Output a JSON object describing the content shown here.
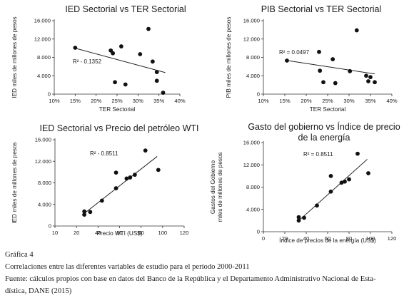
{
  "chart_data": [
    {
      "type": "scatter",
      "title": "IED Sectorial vs TER Sectorial",
      "xlabel": "TER Sectorial",
      "ylabel": "IED miles de millones de pesos",
      "xlim": [
        0.1,
        0.4
      ],
      "ylim": [
        0,
        16000
      ],
      "xticks": [
        "10%",
        "15%",
        "20%",
        "25%",
        "30%",
        "35%",
        "40%"
      ],
      "yticks": [
        "0",
        "4.000",
        "8.000",
        "12.000",
        "16.000"
      ],
      "annotation": "R² - 0.1352",
      "trendline": [
        [
          0.15,
          10000
        ],
        [
          0.365,
          4700
        ]
      ],
      "points": [
        [
          0.15,
          10100
        ],
        [
          0.235,
          9500
        ],
        [
          0.24,
          8900
        ],
        [
          0.245,
          2600
        ],
        [
          0.26,
          10400
        ],
        [
          0.27,
          2100
        ],
        [
          0.305,
          8700
        ],
        [
          0.325,
          14200
        ],
        [
          0.335,
          7100
        ],
        [
          0.345,
          4800
        ],
        [
          0.345,
          2900
        ],
        [
          0.36,
          300
        ]
      ]
    },
    {
      "type": "scatter",
      "title": "PIB Sectorial vs TER Sectorial",
      "xlabel": "TER Sectorial",
      "ylabel": "PIB miles de millones de pesos",
      "xlim": [
        0.1,
        0.4
      ],
      "ylim": [
        0,
        16000
      ],
      "xticks": [
        "10%",
        "15%",
        "20%",
        "25%",
        "30%",
        "35%",
        "40%"
      ],
      "yticks": [
        "0",
        "4.000",
        "8.000",
        "12.000",
        "16.000"
      ],
      "annotation": "R² = 0.0497",
      "trendline": [
        [
          0.15,
          7400
        ],
        [
          0.36,
          4400
        ]
      ],
      "points": [
        [
          0.155,
          7300
        ],
        [
          0.23,
          9200
        ],
        [
          0.232,
          5100
        ],
        [
          0.24,
          2600
        ],
        [
          0.262,
          7600
        ],
        [
          0.268,
          2400
        ],
        [
          0.302,
          5000
        ],
        [
          0.318,
          13900
        ],
        [
          0.34,
          4000
        ],
        [
          0.345,
          2800
        ],
        [
          0.35,
          3700
        ],
        [
          0.36,
          2600
        ]
      ]
    },
    {
      "type": "scatter",
      "title": "IED Sectorial vs Precio del petróleo WTI",
      "xlabel": "Precio WTI (US$)",
      "ylabel": "IED miles de millones de pesos",
      "xlim": [
        10,
        120
      ],
      "ylim": [
        0,
        16000
      ],
      "xticks": [
        "10",
        "20",
        "40",
        "60",
        "80",
        "100",
        "120"
      ],
      "yticks": [
        "0",
        "4.000",
        "8.000",
        "12.000",
        "16.000"
      ],
      "annotation": "R² - 0.8511",
      "trendline": [
        [
          33,
          2000
        ],
        [
          97,
          12900
        ]
      ],
      "points": [
        [
          35,
          2700
        ],
        [
          35,
          2100
        ],
        [
          40,
          2600
        ],
        [
          50,
          4700
        ],
        [
          62,
          7000
        ],
        [
          62,
          9900
        ],
        [
          71,
          8800
        ],
        [
          74,
          9000
        ],
        [
          78,
          9500
        ],
        [
          87,
          14000
        ],
        [
          98,
          10400
        ]
      ]
    },
    {
      "type": "scatter",
      "title": "Gasto del gobierno vs Índice de precio de la energía",
      "xlabel": "Índice de precios de la energía (US$)",
      "ylabel": "Gastos del Gobierno miles de millones de pesos",
      "xlim": [
        0,
        120
      ],
      "ylim": [
        0,
        16000
      ],
      "xticks": [
        "0",
        "20",
        "40",
        "60",
        "80",
        "100",
        "120"
      ],
      "yticks": [
        "0",
        "4.000",
        "8.000",
        "12.000",
        "16.000"
      ],
      "annotation": "R² = 0.8511",
      "trendline": [
        [
          32,
          1800
        ],
        [
          97,
          13000
        ]
      ],
      "points": [
        [
          33,
          2600
        ],
        [
          33,
          2000
        ],
        [
          38,
          2500
        ],
        [
          50,
          4700
        ],
        [
          63,
          7200
        ],
        [
          63,
          10000
        ],
        [
          73,
          8800
        ],
        [
          76,
          9000
        ],
        [
          80,
          9400
        ],
        [
          88,
          14000
        ],
        [
          98,
          10500
        ]
      ]
    }
  ],
  "caption": {
    "label": "Gráfica 4",
    "description": "Correlaciones entre las diferentes variables de estudio para el período 2000-2011",
    "source_line1": "Fuente: cálculos propios con base en datos del Banco de la República y el Departamento Administrativo Nacional de Esta-",
    "source_line2": "dística, DANE (2015)"
  }
}
